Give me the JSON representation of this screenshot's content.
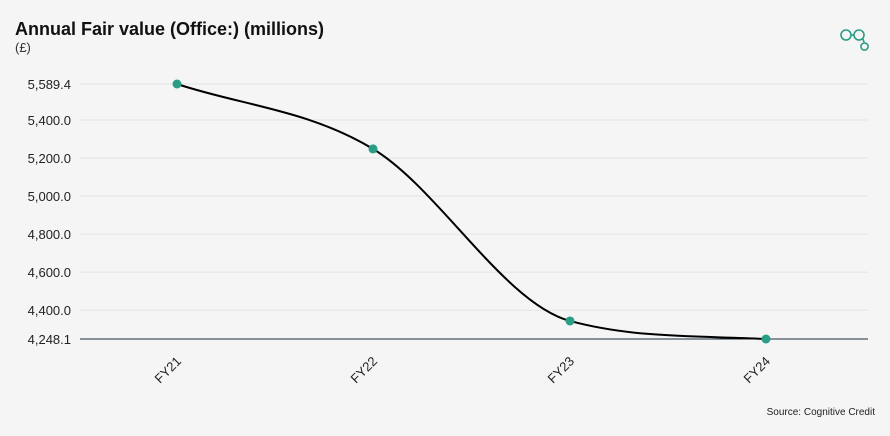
{
  "header": {
    "title": "Annual Fair value (Office:) (millions)",
    "subtitle": "(£)"
  },
  "footer": {
    "source": "Source: Cognitive Credit"
  },
  "logo": {
    "icon": "cognitive-credit-logo-icon",
    "color": "#2a9d86"
  },
  "colors": {
    "point": "#2a9d86",
    "line": "#000000",
    "baseline": "#1c2b3a",
    "grid": "#e4e4e4"
  },
  "chart_data": {
    "type": "line",
    "smooth": true,
    "categories": [
      "FY21",
      "FY22",
      "FY23",
      "FY24"
    ],
    "values": [
      5589.4,
      5248.0,
      4343.0,
      4248.1
    ],
    "yticks": [
      4248.1,
      4400.0,
      4600.0,
      4800.0,
      5000.0,
      5200.0,
      5400.0,
      5589.4
    ],
    "ytick_labels": [
      "4,248.1",
      "4,400.0",
      "4,600.0",
      "4,800.0",
      "5,000.0",
      "5,200.0",
      "5,400.0",
      "5,589.4"
    ],
    "ylim": [
      4248.1,
      5589.4
    ],
    "grid": true,
    "title": "Annual Fair value (Office:) (millions)",
    "ylabel": "(£)",
    "xlabel": ""
  }
}
